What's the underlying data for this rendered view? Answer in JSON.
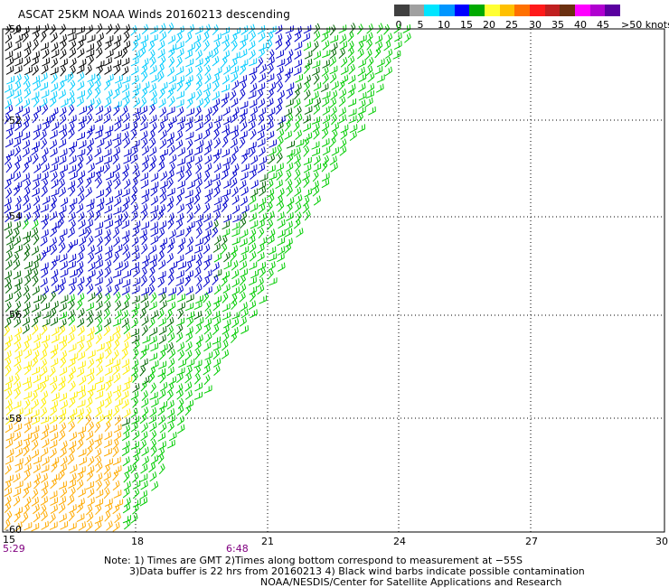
{
  "title": "ASCAT 25KM NOAA Winds 20160213 descending",
  "legend": {
    "labels": [
      "0",
      "5",
      "10",
      "15",
      "20",
      "25",
      "30",
      "35",
      "40",
      "45",
      ">50 knots"
    ],
    "colors": [
      "#404040",
      "#a0a0a0",
      "#00e5ff",
      "#0096ff",
      "#0000ff",
      "#00aa00",
      "#ffff33",
      "#ffc000",
      "#ff7000",
      "#ff1a1a",
      "#c02020",
      "#6b3010",
      "#ff00ff",
      "#b000d0",
      "#5a00a0"
    ]
  },
  "map": {
    "lat_labels": [
      "-50",
      "-52",
      "-54",
      "-56",
      "-58",
      "-60"
    ],
    "lon_labels": [
      "15",
      "18",
      "21",
      "24",
      "27",
      "30"
    ],
    "time_labels": [
      "5:29",
      "6:48"
    ],
    "barb_colors": {
      "contaminated": "#000000",
      "light": "#00ccff",
      "moderate": "#0000cc",
      "fresh": "#00cc00",
      "dark_green": "#006600",
      "strong": "#ffee00",
      "gale": "#ffaa00"
    }
  },
  "notes": {
    "line1": "Note: 1) Times are GMT 2)Times along bottom correspond to measurement at −55S",
    "line2": "3)Data buffer is 22 hrs from 20160213 4) Black wind barbs indicate possible contamination",
    "line3": "NOAA/NESDIS/Center for Satellite Applications and Research"
  }
}
